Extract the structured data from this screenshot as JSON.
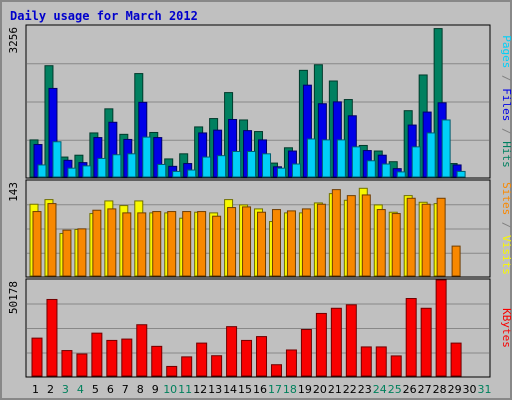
{
  "header": {
    "title": "Daily usage for March 2012"
  },
  "colors": {
    "pages": "#00d0f8",
    "files": "#0000e8",
    "hits": "#008060",
    "visits": "#f8f800",
    "sites": "#f88800",
    "kbytes": "#f80000",
    "weekend": "#00805c",
    "weekday": "#000000",
    "background": "#c0c0c0"
  },
  "chart_data": [
    {
      "type": "bar",
      "panel": "hits-files-pages",
      "categories": [
        "1",
        "2",
        "3",
        "4",
        "5",
        "6",
        "7",
        "8",
        "9",
        "10",
        "11",
        "12",
        "13",
        "14",
        "15",
        "16",
        "17",
        "18",
        "19",
        "20",
        "21",
        "22",
        "23",
        "24",
        "25",
        "26",
        "27",
        "28",
        "29",
        "30",
        "31"
      ],
      "weekend_days": [
        "3",
        "4",
        "10",
        "11",
        "17",
        "18",
        "24",
        "25",
        "31"
      ],
      "ymax_label": "3256",
      "ylim": [
        0,
        3256
      ],
      "series": [
        {
          "name": "Hits",
          "values": [
            800,
            2400,
            430,
            470,
            950,
            1470,
            920,
            2230,
            960,
            390,
            500,
            1080,
            1260,
            1820,
            1230,
            980,
            300,
            630,
            2300,
            2420,
            2070,
            1670,
            680,
            560,
            330,
            1430,
            2200,
            3200,
            290,
            0,
            0
          ]
        },
        {
          "name": "Files",
          "values": [
            700,
            1910,
            360,
            310,
            850,
            1180,
            810,
            1610,
            850,
            230,
            290,
            950,
            1010,
            1240,
            1000,
            800,
            220,
            560,
            1980,
            1580,
            1620,
            1320,
            570,
            470,
            180,
            1120,
            1400,
            1600,
            260,
            0,
            0
          ]
        },
        {
          "name": "Pages",
          "values": [
            260,
            760,
            190,
            240,
            400,
            480,
            500,
            860,
            270,
            120,
            150,
            430,
            460,
            550,
            550,
            500,
            190,
            280,
            820,
            800,
            800,
            650,
            350,
            280,
            110,
            650,
            950,
            1230,
            120,
            0,
            0
          ]
        }
      ]
    },
    {
      "type": "bar",
      "panel": "visits-sites",
      "categories": [
        "1",
        "2",
        "3",
        "4",
        "5",
        "6",
        "7",
        "8",
        "9",
        "10",
        "11",
        "12",
        "13",
        "14",
        "15",
        "16",
        "17",
        "18",
        "19",
        "20",
        "21",
        "22",
        "23",
        "24",
        "25",
        "26",
        "27",
        "28",
        "29",
        "30",
        "31"
      ],
      "ymax_label": "143",
      "ylim": [
        0,
        143
      ],
      "series": [
        {
          "name": "Visits",
          "values": [
            108,
            115,
            64,
            70,
            94,
            113,
            106,
            113,
            95,
            95,
            87,
            96,
            95,
            115,
            107,
            101,
            82,
            95,
            95,
            110,
            124,
            114,
            132,
            107,
            96,
            121,
            111,
            109,
            0,
            0,
            0
          ]
        },
        {
          "name": "Sites",
          "values": [
            97,
            109,
            69,
            71,
            99,
            101,
            95,
            95,
            97,
            97,
            97,
            97,
            90,
            103,
            104,
            96,
            100,
            98,
            101,
            108,
            130,
            121,
            122,
            100,
            94,
            117,
            108,
            117,
            45,
            0,
            0
          ]
        }
      ]
    },
    {
      "type": "bar",
      "panel": "kbytes",
      "categories": [
        "1",
        "2",
        "3",
        "4",
        "5",
        "6",
        "7",
        "8",
        "9",
        "10",
        "11",
        "12",
        "13",
        "14",
        "15",
        "16",
        "17",
        "18",
        "19",
        "20",
        "21",
        "22",
        "23",
        "24",
        "25",
        "26",
        "27",
        "28",
        "29",
        "30",
        "31"
      ],
      "ymax_label": "50178",
      "ylim": [
        0,
        50178
      ],
      "series": [
        {
          "name": "KBytes",
          "values": [
            19800,
            40000,
            13300,
            11500,
            22400,
            18600,
            19300,
            26800,
            15500,
            5000,
            10000,
            17200,
            10600,
            25800,
            18600,
            20600,
            5900,
            13600,
            24300,
            32700,
            35400,
            37200,
            15200,
            15200,
            10500,
            40500,
            35400,
            51000,
            17200,
            0,
            0
          ]
        }
      ]
    }
  ],
  "legends": {
    "top": [
      {
        "text": "Pages",
        "color": "#00d0f8"
      },
      {
        "text": " / ",
        "color": "#808080"
      },
      {
        "text": "Files",
        "color": "#0000e8"
      },
      {
        "text": " / ",
        "color": "#808080"
      },
      {
        "text": "Hits",
        "color": "#008060"
      }
    ],
    "middle": [
      {
        "text": "Sites",
        "color": "#f88800"
      },
      {
        "text": " / ",
        "color": "#808080"
      },
      {
        "text": "Visits",
        "color": "#f8f800"
      }
    ],
    "bottom": [
      {
        "text": "KBytes",
        "color": "#f80000"
      }
    ]
  }
}
